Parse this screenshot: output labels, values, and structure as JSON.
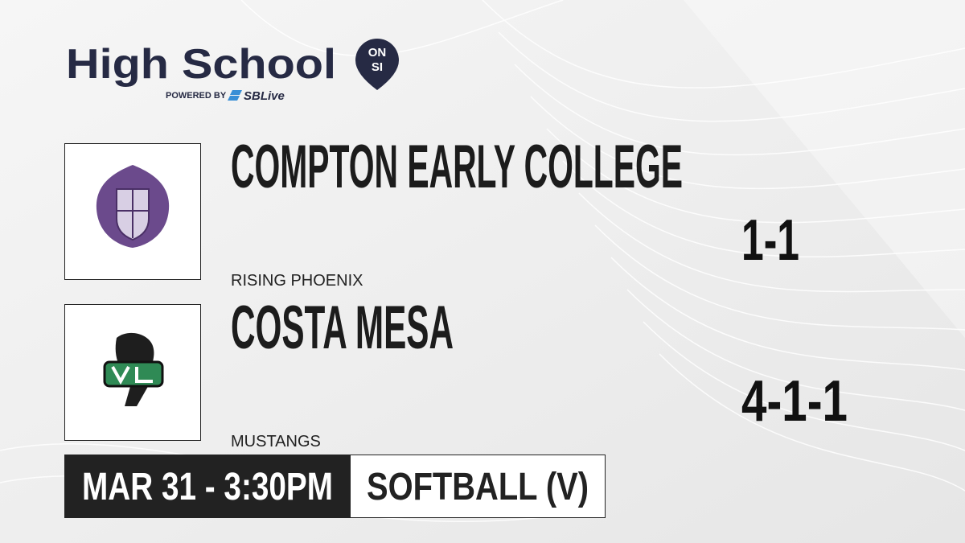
{
  "brand": {
    "title": "High School",
    "badge_top": "ON",
    "badge_bottom": "SI",
    "powered_by": "POWERED BY",
    "partner": "SBLive"
  },
  "teams": [
    {
      "name": "COMPTON EARLY COLLEGE",
      "mascot": "RISING PHOENIX",
      "record": "1-1"
    },
    {
      "name": "COSTA MESA",
      "mascot": "MUSTANGS",
      "record": "4-1-1"
    }
  ],
  "game": {
    "datetime": "MAR 31 - 3:30PM",
    "sport": "SOFTBALL (V)"
  }
}
